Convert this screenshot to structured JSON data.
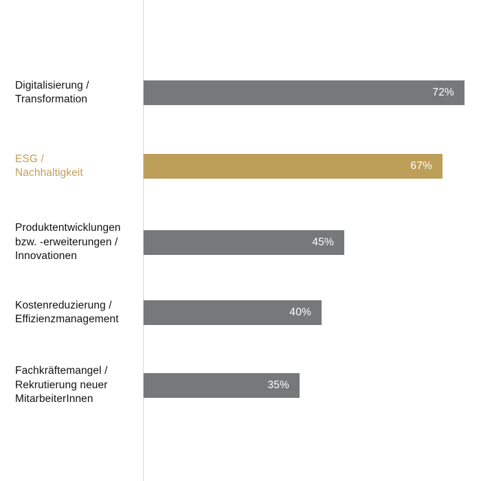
{
  "chart_data": {
    "type": "bar",
    "orientation": "horizontal",
    "categories": [
      "Digitalisierung /\nTransformation",
      "ESG /\nNachhaltigkeit",
      "Produktentwicklungen\nbzw. -erweiterungen /\nInnovationen",
      "Kostenreduzierung /\nEffizienzmanagement",
      "Fachkräftemangel /\nRekrutierung neuer\nMitarbeiterInnen"
    ],
    "values": [
      72,
      67,
      45,
      40,
      35
    ],
    "value_labels": [
      "72%",
      "67%",
      "45%",
      "40%",
      "35%"
    ],
    "highlight_index": 1,
    "xlim": [
      0,
      72
    ],
    "grid": false,
    "title": "",
    "xlabel": "",
    "ylabel": ""
  },
  "colors": {
    "bar_default": "#76787a",
    "bar_highlight": "#be9f5a",
    "label_default": "#111111",
    "label_highlight": "#be9f5a",
    "value_text": "#ffffff",
    "axis_line": "#d4d4d4"
  }
}
